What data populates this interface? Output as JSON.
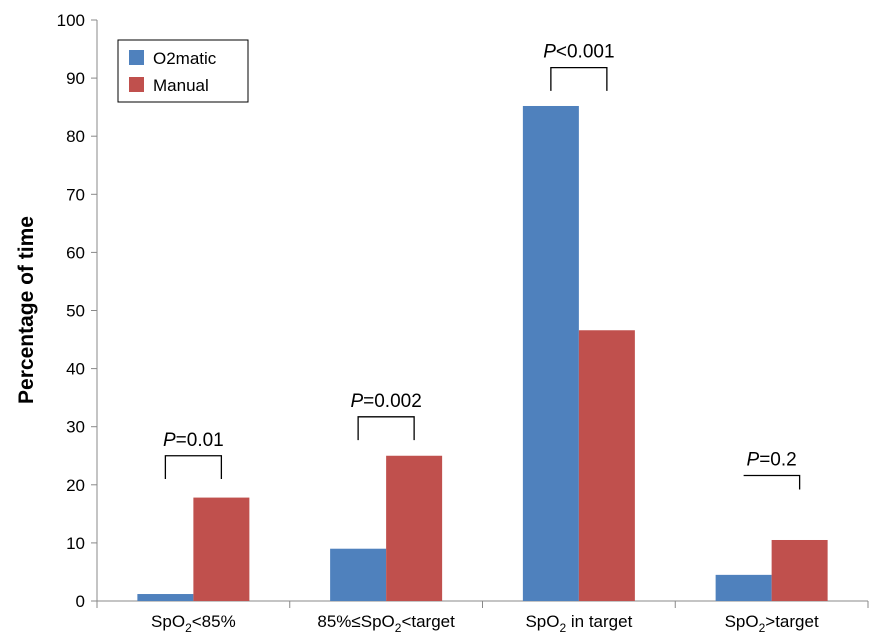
{
  "chart_data": {
    "type": "bar",
    "title": "",
    "xlabel": "",
    "ylabel": "Percentage of time",
    "ylim": [
      0,
      100
    ],
    "yticks": [
      0,
      10,
      20,
      30,
      40,
      50,
      60,
      70,
      80,
      90,
      100
    ],
    "grid": false,
    "legend_position": "top-left",
    "categories": [
      {
        "pre": "SpO",
        "sub": "2",
        "post": "<85%"
      },
      {
        "pre": "85%≤SpO",
        "sub": "2",
        "post": "<target"
      },
      {
        "pre": "SpO",
        "sub": "2",
        "post": " in target"
      },
      {
        "pre": "SpO",
        "sub": "2",
        "post": ">target"
      }
    ],
    "series": [
      {
        "name": "O2matic",
        "color": "#4F81BD",
        "values": [
          1.2,
          9,
          85.2,
          4.5
        ]
      },
      {
        "name": "Manual",
        "color": "#C0504D",
        "values": [
          17.8,
          25,
          46.6,
          10.5
        ]
      }
    ],
    "annotations": [
      {
        "category": 0,
        "italic": "P",
        "text": "=0.01",
        "bracket_bottom": 21,
        "bracket_top": 25
      },
      {
        "category": 1,
        "italic": "P",
        "text": "=0.002",
        "bracket_bottom": 27.7,
        "bracket_top": 31.7
      },
      {
        "category": 2,
        "italic": "P",
        "text": "<0.001",
        "bracket_bottom": 87.8,
        "bracket_top": 91.8
      },
      {
        "category": 3,
        "italic": "P",
        "text": "=0.2",
        "bracket_bottom": 21.6,
        "bracket_top": 21.6,
        "bracket_tip": 19.2
      }
    ]
  }
}
